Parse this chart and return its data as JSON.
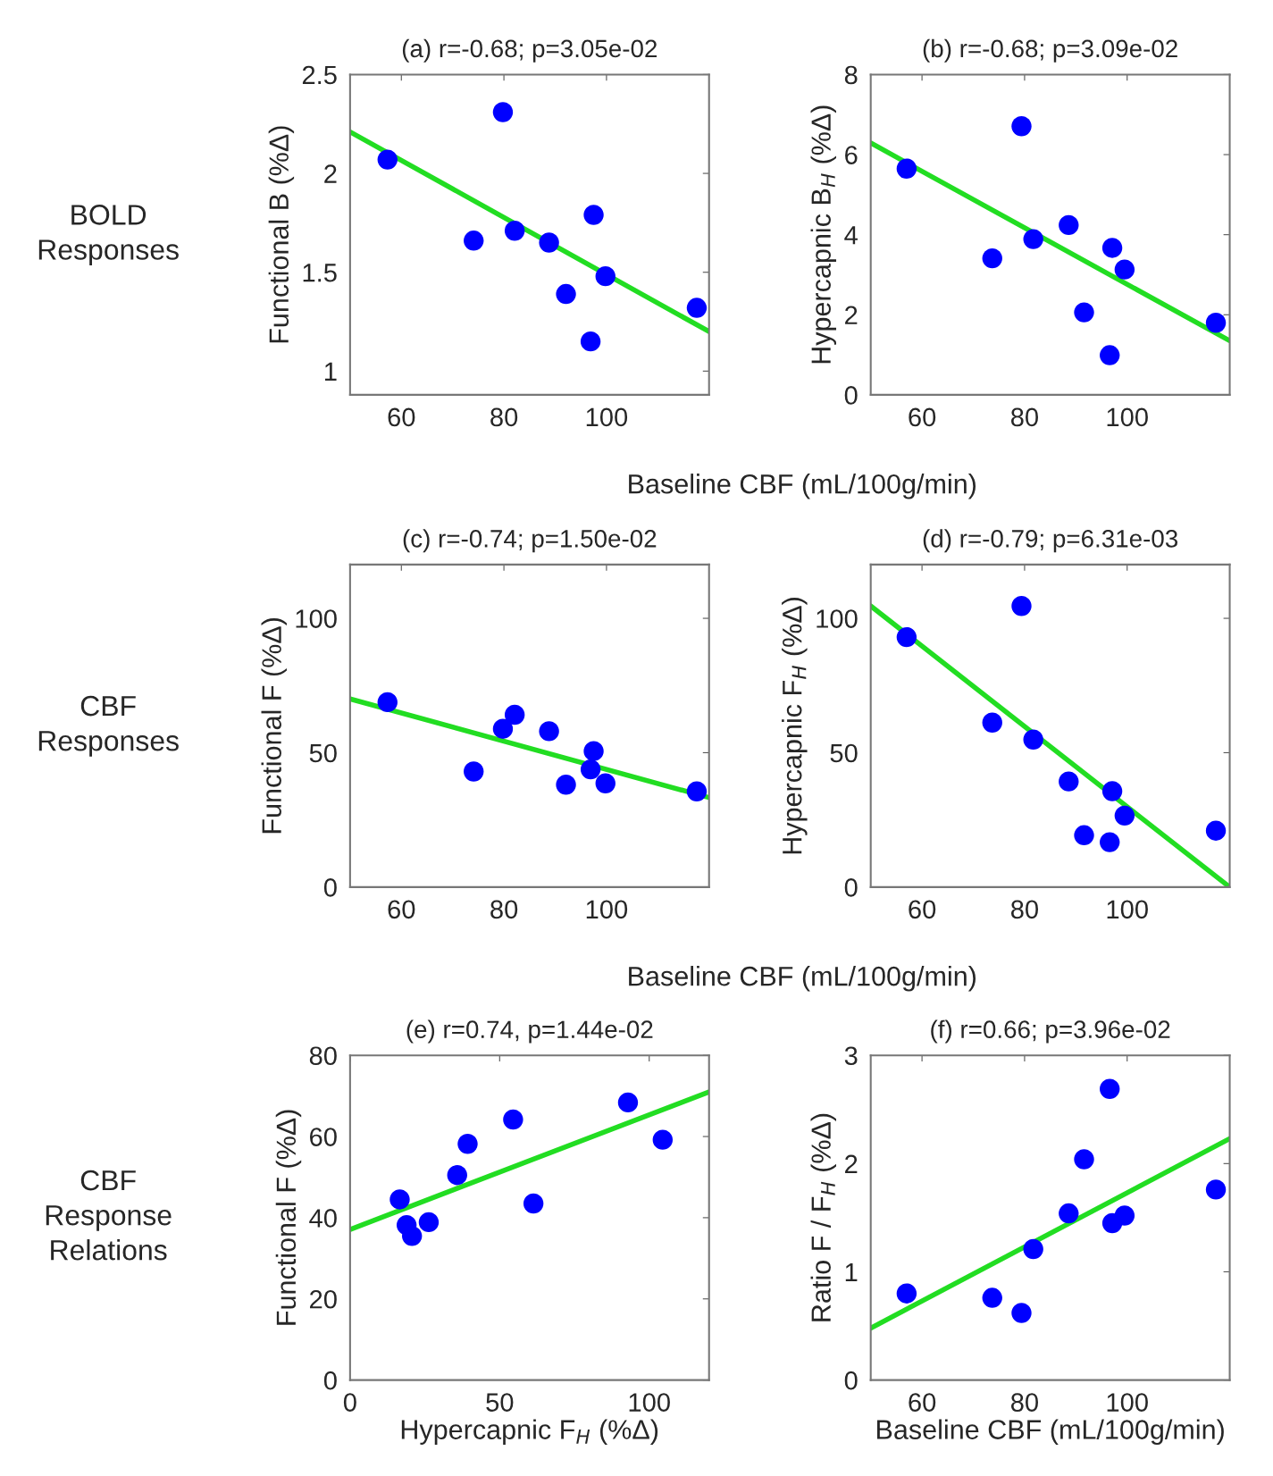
{
  "chart_data": [
    {
      "type": "scatter",
      "title": "(a) r=-0.68; p=3.05e-02",
      "ylabel": "Functional B (%Δ)",
      "xlabel": "Baseline CBF (mL/100g/min)",
      "annotations": [
        "BOLD\nResponses"
      ],
      "xlim": [
        50,
        120
      ],
      "xticks": [
        60,
        80,
        100
      ],
      "ylim": [
        0.88,
        2.5
      ],
      "yticks": [
        1,
        1.5,
        2,
        2.5
      ],
      "grid": false,
      "legend": false,
      "series": [
        {
          "marker": "circle",
          "color": "#0000ff",
          "x": [
            57.3,
            74.1,
            79.8,
            82.1,
            88.8,
            92.1,
            96.9,
            97.5,
            99.8,
            117.6
          ],
          "values": [
            2.07,
            1.66,
            2.31,
            1.71,
            1.65,
            1.39,
            1.15,
            1.79,
            1.48,
            1.32
          ]
        },
        {
          "type": "line",
          "marker": "none",
          "color": "#22dd22",
          "x": [
            50,
            120
          ],
          "values": [
            2.21,
            1.2
          ]
        }
      ]
    },
    {
      "type": "scatter",
      "title": "(b) r=-0.68; p=3.09e-02",
      "ylabel": "Hypercapnic B$_{H}$ (%Δ)",
      "xlim": [
        50,
        120
      ],
      "xticks": [
        60,
        80,
        100
      ],
      "ylim": [
        0,
        8
      ],
      "yticks": [
        0,
        2,
        4,
        6,
        8
      ],
      "grid": false,
      "legend": false,
      "series": [
        {
          "marker": "circle",
          "color": "#0000ff",
          "x": [
            57.0,
            73.7,
            79.4,
            81.7,
            88.6,
            91.6,
            96.6,
            97.1,
            99.5,
            117.3
          ],
          "values": [
            5.65,
            3.41,
            6.71,
            3.89,
            4.24,
            2.06,
            0.99,
            3.67,
            3.13,
            1.8
          ]
        },
        {
          "type": "line",
          "marker": "none",
          "color": "#22dd22",
          "x": [
            50,
            120
          ],
          "values": [
            6.29,
            1.35
          ]
        }
      ]
    },
    {
      "type": "scatter",
      "title": "(c) r=-0.74; p=1.50e-02",
      "ylabel": "Functional F (%Δ)",
      "xlabel": "Baseline CBF (mL/100g/min)",
      "annotations": [
        "CBF\nResponses"
      ],
      "xlim": [
        50,
        120
      ],
      "xticks": [
        60,
        80,
        100
      ],
      "ylim": [
        0,
        120
      ],
      "yticks": [
        0,
        50,
        100
      ],
      "grid": false,
      "legend": false,
      "series": [
        {
          "marker": "circle",
          "color": "#0000ff",
          "x": [
            57.3,
            74.1,
            79.8,
            82.1,
            88.8,
            92.1,
            96.9,
            97.5,
            99.8,
            117.6
          ],
          "values": [
            68.8,
            43.0,
            58.9,
            64.1,
            58.0,
            38.1,
            43.8,
            50.6,
            38.6,
            35.6
          ]
        },
        {
          "type": "line",
          "marker": "none",
          "color": "#22dd22",
          "x": [
            50,
            120
          ],
          "values": [
            70.0,
            33.3
          ]
        }
      ]
    },
    {
      "type": "scatter",
      "title": "(d) r=-0.79; p=6.31e-03",
      "ylabel": "Hypercapnic F$_{H}$ (%Δ)",
      "xlim": [
        50,
        120
      ],
      "xticks": [
        60,
        80,
        100
      ],
      "ylim": [
        0,
        120
      ],
      "yticks": [
        0,
        50,
        100
      ],
      "grid": false,
      "legend": false,
      "series": [
        {
          "marker": "circle",
          "color": "#0000ff",
          "x": [
            57.0,
            73.7,
            79.4,
            81.7,
            88.6,
            91.6,
            96.6,
            97.1,
            99.5,
            117.3
          ],
          "values": [
            93.0,
            61.2,
            104.6,
            54.9,
            39.3,
            19.3,
            16.7,
            35.7,
            26.6,
            21.0
          ]
        },
        {
          "type": "line",
          "marker": "none",
          "color": "#22dd22",
          "x": [
            50,
            120
          ],
          "values": [
            104.6,
            0
          ]
        }
      ]
    },
    {
      "type": "scatter",
      "title": "(e) r=0.74, p=1.44e-02",
      "ylabel": "Functional F (%Δ)",
      "xlabel": "Hypercapnic F$_{H}$ (%Δ)",
      "annotations": [
        "CBF\nResponse\nRelations"
      ],
      "xlim": [
        0,
        120
      ],
      "xticks": [
        0,
        50,
        100
      ],
      "ylim": [
        0,
        80
      ],
      "yticks": [
        0,
        20,
        40,
        60,
        80
      ],
      "grid": false,
      "legend": false,
      "series": [
        {
          "marker": "circle",
          "color": "#0000ff",
          "x": [
            16.6,
            18.9,
            20.7,
            26.3,
            35.8,
            39.3,
            54.5,
            61.3,
            92.9,
            104.5
          ],
          "values": [
            44.5,
            38.2,
            35.5,
            38.9,
            50.5,
            58.2,
            64.2,
            43.5,
            68.4,
            59.2
          ]
        },
        {
          "type": "line",
          "marker": "none",
          "color": "#22dd22",
          "x": [
            0,
            120
          ],
          "values": [
            37.1,
            71.0
          ]
        }
      ]
    },
    {
      "type": "scatter",
      "title": "(f) r=0.66; p=3.96e-02",
      "ylabel": "Ratio F / F$_{H}$ (%Δ)",
      "xlabel": "Baseline CBF (mL/100g/min)",
      "xlim": [
        50,
        120
      ],
      "xticks": [
        60,
        80,
        100
      ],
      "ylim": [
        0,
        3
      ],
      "yticks": [
        0,
        1,
        2,
        3
      ],
      "grid": false,
      "legend": false,
      "series": [
        {
          "marker": "circle",
          "color": "#0000ff",
          "x": [
            57.0,
            73.7,
            79.4,
            81.7,
            88.6,
            91.6,
            96.6,
            97.1,
            99.5,
            117.3
          ],
          "values": [
            0.8,
            0.76,
            0.62,
            1.21,
            1.54,
            2.04,
            2.69,
            1.45,
            1.52,
            1.76
          ]
        },
        {
          "type": "line",
          "marker": "none",
          "color": "#22dd22",
          "x": [
            50,
            120
          ],
          "values": [
            0.48,
            2.23
          ]
        }
      ]
    }
  ]
}
